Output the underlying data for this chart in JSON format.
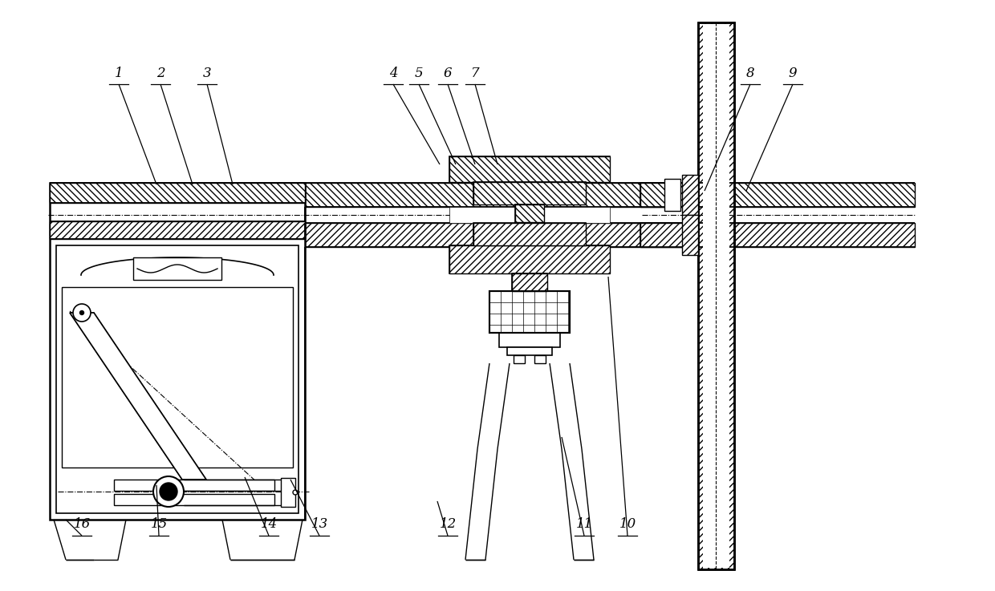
{
  "background_color": "#ffffff",
  "line_color": "#000000",
  "figsize": [
    12.4,
    7.37
  ],
  "dpi": 100,
  "labels_data": [
    [
      "1",
      148,
      105,
      195,
      230
    ],
    [
      "2",
      200,
      105,
      240,
      230
    ],
    [
      "3",
      258,
      105,
      290,
      230
    ],
    [
      "4",
      490,
      105,
      548,
      205
    ],
    [
      "5",
      522,
      105,
      568,
      205
    ],
    [
      "6",
      558,
      105,
      592,
      205
    ],
    [
      "7",
      592,
      105,
      620,
      205
    ],
    [
      "8",
      935,
      105,
      878,
      238
    ],
    [
      "9",
      988,
      105,
      930,
      238
    ],
    [
      "10",
      782,
      668,
      758,
      345
    ],
    [
      "11",
      728,
      668,
      700,
      545
    ],
    [
      "12",
      558,
      668,
      545,
      625
    ],
    [
      "13",
      398,
      668,
      362,
      598
    ],
    [
      "14",
      335,
      668,
      305,
      595
    ],
    [
      "15",
      198,
      668,
      195,
      605
    ],
    [
      "16",
      102,
      668,
      82,
      648
    ]
  ]
}
